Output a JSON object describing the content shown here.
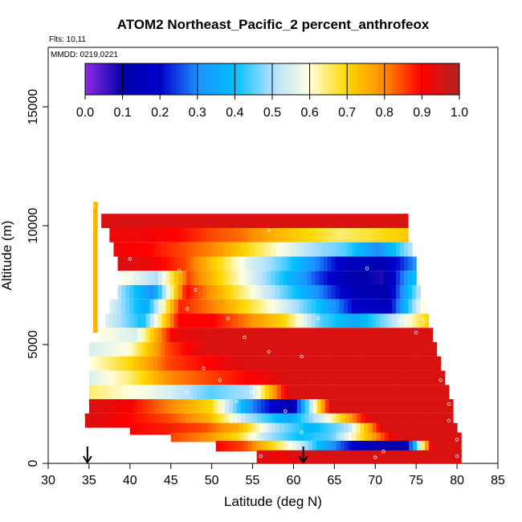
{
  "chart_data": {
    "type": "heatmap",
    "title": "ATOM2 Northeast_Pacific_2 percent_anthrofeox",
    "flights_label": "Flts: 10,11",
    "dates_label": "MMDD: 0219,0221",
    "xlabel": "Latitude (deg N)",
    "ylabel": "Altitude (m)",
    "xlim": [
      30,
      85
    ],
    "ylim": [
      0,
      17500
    ],
    "x_ticks": [
      "30",
      "35",
      "40",
      "45",
      "50",
      "55",
      "60",
      "65",
      "70",
      "75",
      "80",
      "85"
    ],
    "y_ticks": [
      "0",
      "5000",
      "10000",
      "15000"
    ],
    "colorbar": {
      "range": [
        0,
        1
      ],
      "ticks": [
        "0.0",
        "0.1",
        "0.2",
        "0.3",
        "0.4",
        "0.5",
        "0.6",
        "0.7",
        "0.8",
        "0.9",
        "1.0"
      ],
      "colors": [
        "#8a2be2",
        "#0000aa",
        "#0000cd",
        "#1e90ff",
        "#00bfff",
        "#b0e0ff",
        "#ffffe0",
        "#ffd700",
        "#ff8c00",
        "#ff0000",
        "#b22222"
      ]
    },
    "arrows_lat": [
      34.8,
      61.2
    ],
    "layers": [
      {
        "lat0": 36.5,
        "lat1": 74.0,
        "alt0": 9900,
        "alt1": 10500,
        "values": [
          0.95,
          0.95,
          0.95,
          0.95,
          0.95,
          0.95,
          0.95,
          0.95,
          0.95,
          0.95
        ]
      },
      {
        "lat0": 37.5,
        "lat1": 74.0,
        "alt0": 9300,
        "alt1": 9900,
        "values": [
          0.92,
          0.92,
          0.9,
          0.85,
          0.82,
          0.75,
          0.7,
          0.65,
          0.68,
          0.72
        ]
      },
      {
        "lat0": 38.0,
        "lat1": 74.5,
        "alt0": 8700,
        "alt1": 9300,
        "values": [
          0.92,
          0.9,
          0.85,
          0.8,
          0.7,
          0.6,
          0.5,
          0.45,
          0.3,
          0.5
        ]
      },
      {
        "lat0": 38.5,
        "lat1": 75.0,
        "alt0": 8100,
        "alt1": 8700,
        "values": [
          0.95,
          0.92,
          0.85,
          0.7,
          0.55,
          0.45,
          0.3,
          0.15,
          0.12,
          0.3
        ]
      },
      {
        "lat0": 39.0,
        "lat1": 75.0,
        "alt0": 7500,
        "alt1": 8100,
        "values": [
          0.6,
          0.5,
          0.85,
          0.7,
          0.55,
          0.4,
          0.25,
          0.12,
          0.08,
          0.4
        ]
      },
      {
        "lat0": 38.5,
        "lat1": 75.5,
        "alt0": 6900,
        "alt1": 7500,
        "values": [
          0.5,
          0.3,
          0.9,
          0.75,
          0.6,
          0.45,
          0.3,
          0.15,
          0.1,
          0.5
        ]
      },
      {
        "lat0": 37.5,
        "lat1": 76.0,
        "alt0": 6300,
        "alt1": 6900,
        "values": [
          0.55,
          0.35,
          0.88,
          0.8,
          0.68,
          0.55,
          0.4,
          0.2,
          0.15,
          0.6
        ]
      },
      {
        "lat0": 37.0,
        "lat1": 76.5,
        "alt0": 5700,
        "alt1": 6300,
        "values": [
          0.55,
          0.4,
          0.9,
          0.9,
          0.8,
          0.7,
          0.45,
          0.35,
          0.5,
          0.7
        ]
      },
      {
        "lat0": 36.0,
        "lat1": 77.0,
        "alt0": 5100,
        "alt1": 5700,
        "values": [
          0.6,
          0.55,
          0.92,
          0.95,
          0.95,
          0.95,
          0.95,
          0.95,
          0.95,
          0.95
        ]
      },
      {
        "lat0": 35.0,
        "lat1": 77.5,
        "alt0": 4500,
        "alt1": 5100,
        "values": [
          0.55,
          0.6,
          0.85,
          0.95,
          0.95,
          0.95,
          0.95,
          0.95,
          0.95,
          0.95
        ]
      },
      {
        "lat0": 35.0,
        "lat1": 78.0,
        "alt0": 3900,
        "alt1": 4500,
        "values": [
          0.6,
          0.7,
          0.85,
          0.9,
          0.95,
          0.95,
          0.95,
          0.95,
          0.95,
          0.95
        ]
      },
      {
        "lat0": 35.0,
        "lat1": 78.5,
        "alt0": 3300,
        "alt1": 3900,
        "values": [
          0.55,
          0.65,
          0.8,
          0.85,
          0.9,
          0.95,
          0.95,
          0.95,
          0.95,
          0.95
        ]
      },
      {
        "lat0": 35.0,
        "lat1": 79.0,
        "alt0": 2700,
        "alt1": 3300,
        "values": [
          0.65,
          0.6,
          0.55,
          0.45,
          0.5,
          0.95,
          0.95,
          0.95,
          0.95,
          0.95
        ]
      },
      {
        "lat0": 35.0,
        "lat1": 79.5,
        "alt0": 2100,
        "alt1": 2700,
        "values": [
          0.95,
          0.9,
          0.8,
          0.7,
          0.3,
          0.1,
          0.95,
          0.95,
          0.95,
          0.95
        ]
      },
      {
        "lat0": 34.5,
        "lat1": 79.5,
        "alt0": 1500,
        "alt1": 2100,
        "values": [
          0.95,
          0.9,
          0.85,
          0.75,
          0.5,
          0.35,
          0.6,
          0.95,
          0.95,
          0.95
        ]
      },
      {
        "lat0": 40.0,
        "lat1": 80.0,
        "alt0": 1200,
        "alt1": 1700,
        "values": [
          0.9,
          0.88,
          0.85,
          0.75,
          0.5,
          0.38,
          0.5,
          0.95,
          0.95,
          0.95
        ]
      },
      {
        "lat0": 45.0,
        "lat1": 80.5,
        "alt0": 900,
        "alt1": 1300,
        "values": [
          0.85,
          0.8,
          0.7,
          0.5,
          0.4,
          0.45,
          0.7,
          0.95,
          0.95,
          0.95
        ]
      },
      {
        "lat0": 50.5,
        "lat1": 80.5,
        "alt0": 500,
        "alt1": 950,
        "values": [
          0.9,
          0.85,
          0.7,
          0.55,
          0.35,
          0.2,
          0.12,
          0.1,
          0.95,
          0.95
        ]
      },
      {
        "lat0": 55.5,
        "lat1": 80.5,
        "alt0": 0,
        "alt1": 550,
        "values": [
          0.95,
          0.92,
          0.95,
          0.95,
          0.95,
          0.95,
          0.95,
          0.95,
          0.95,
          0.95
        ]
      },
      {
        "lat0": 35.5,
        "lat1": 36.0,
        "alt0": 5500,
        "alt1": 11000,
        "values": [
          0.75,
          0.72,
          0.7
        ]
      }
    ],
    "points": [
      [
        35.5,
        10800
      ],
      [
        40,
        8600
      ],
      [
        41,
        7800
      ],
      [
        44,
        6800
      ],
      [
        46,
        8100
      ],
      [
        48,
        7300
      ],
      [
        52,
        6100
      ],
      [
        54,
        5300
      ],
      [
        57,
        4700
      ],
      [
        61,
        4500
      ],
      [
        63,
        6100
      ],
      [
        69,
        8200
      ],
      [
        73,
        6000
      ],
      [
        76,
        6000
      ],
      [
        75,
        5500
      ],
      [
        78,
        3500
      ],
      [
        79,
        2500
      ],
      [
        79,
        1800
      ],
      [
        80,
        1000
      ],
      [
        80,
        300
      ],
      [
        70,
        250
      ],
      [
        71,
        500
      ],
      [
        61,
        1300
      ],
      [
        56,
        300
      ],
      [
        59,
        2200
      ],
      [
        55,
        3000
      ],
      [
        53,
        2600
      ],
      [
        51,
        3500
      ],
      [
        47,
        3000
      ],
      [
        34.8,
        2400
      ],
      [
        57,
        9800
      ],
      [
        47,
        6500
      ],
      [
        49,
        4000
      ]
    ]
  }
}
